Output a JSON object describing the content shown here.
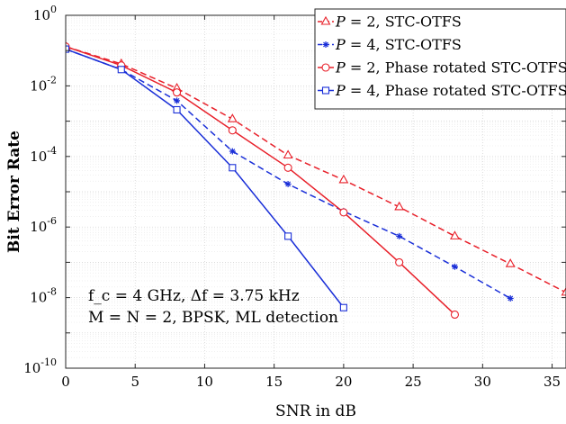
{
  "chart_data": {
    "type": "line",
    "xlabel": "SNR in dB",
    "ylabel": "Bit Error Rate",
    "xlim": [
      0,
      36
    ],
    "ylim_log10": [
      -10,
      0
    ],
    "y_scale": "log",
    "grid": "on (major and minor)",
    "legend_location": "top-right",
    "x_ticks": [
      "0",
      "5",
      "10",
      "15",
      "20",
      "25",
      "30",
      "35"
    ],
    "y_ticks": [
      {
        "exp": 0,
        "label": "10",
        "sup": "0"
      },
      {
        "exp": -2,
        "label": "10",
        "sup": "-2"
      },
      {
        "exp": -4,
        "label": "10",
        "sup": "-4"
      },
      {
        "exp": -6,
        "label": "10",
        "sup": "-6"
      },
      {
        "exp": -8,
        "label": "10",
        "sup": "-8"
      },
      {
        "exp": -10,
        "label": "10",
        "sup": "-10"
      }
    ],
    "annotation": [
      "f_c = 4 GHz, Δf = 3.75 kHz",
      "M = N = 2, BPSK, ML detection"
    ],
    "series": [
      {
        "name": "P = 2, STC-OTFS",
        "legend": {
          "var": "P",
          "rest": " = 2, STC-OTFS"
        },
        "color": "#e8202a",
        "dash": true,
        "marker": "triangle",
        "x": [
          0,
          4,
          8,
          12,
          16,
          20,
          24,
          28,
          32,
          36
        ],
        "y": [
          0.13,
          0.042,
          0.0085,
          0.00115,
          0.000108,
          2.15e-05,
          3.7e-06,
          5.5e-07,
          9e-08,
          1.4e-08
        ]
      },
      {
        "name": "P = 4, STC-OTFS",
        "legend": {
          "var": "P",
          "rest": " = 4, STC-OTFS"
        },
        "color": "#1a2fd8",
        "dash": true,
        "marker": "star",
        "x": [
          0,
          4,
          8,
          12,
          16,
          20,
          24,
          28,
          32
        ],
        "y": [
          0.11,
          0.029,
          0.0038,
          0.00014,
          1.65e-05,
          2.8e-06,
          5.5e-07,
          7.5e-08,
          9.5e-09
        ]
      },
      {
        "name": "P = 2, Phase rotated STC-OTFS",
        "legend": {
          "var": "P",
          "rest": " = 2, Phase rotated STC-OTFS"
        },
        "color": "#e8202a",
        "dash": false,
        "marker": "circle",
        "x": [
          0,
          4,
          8,
          12,
          16,
          20,
          24,
          28
        ],
        "y": [
          0.13,
          0.038,
          0.0065,
          0.00055,
          4.8e-05,
          2.6e-06,
          1e-07,
          3.3e-09
        ]
      },
      {
        "name": "P = 4, Phase rotated STC-OTFS",
        "legend": {
          "var": "P",
          "rest": " = 4, Phase rotated STC-OTFS"
        },
        "color": "#1a2fd8",
        "dash": false,
        "marker": "square",
        "x": [
          0,
          4,
          8,
          12,
          16,
          20
        ],
        "y": [
          0.11,
          0.029,
          0.0021,
          4.8e-05,
          5.5e-07,
          5.2e-09
        ]
      }
    ]
  }
}
